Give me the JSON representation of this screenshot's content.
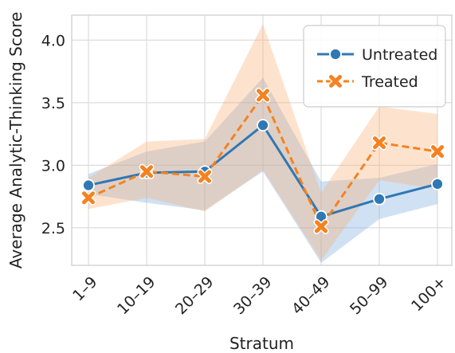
{
  "chart_data": {
    "type": "line",
    "title": "",
    "xlabel": "Stratum",
    "ylabel": "Average Analytic-Thinking Score",
    "categories": [
      "1–9",
      "10–19",
      "20–29",
      "30–39",
      "40–49",
      "50–99",
      "100+"
    ],
    "ylim": [
      2.2,
      4.2
    ],
    "yticks": [
      2.5,
      3.0,
      3.5,
      4.0
    ],
    "ytick_labels": [
      "2.5",
      "3.0",
      "3.5",
      "4.0"
    ],
    "grid": true,
    "legend_position": "top-right",
    "series": [
      {
        "name": "Untreated",
        "color": "#2f78b4",
        "line_style": "solid",
        "marker": "circle",
        "values": [
          2.84,
          2.94,
          2.95,
          3.32,
          2.59,
          2.73,
          2.85
        ],
        "ci_lower": [
          2.77,
          2.7,
          2.64,
          2.95,
          2.22,
          2.57,
          2.69
        ],
        "ci_upper": [
          2.93,
          3.11,
          3.19,
          3.7,
          2.87,
          2.9,
          3.01
        ]
      },
      {
        "name": "Treated",
        "color": "#f58220",
        "line_style": "dashed",
        "marker": "x",
        "values": [
          2.74,
          2.95,
          2.91,
          3.56,
          2.51,
          3.18,
          3.11
        ],
        "ci_lower": [
          2.65,
          2.74,
          2.63,
          2.96,
          2.24,
          2.88,
          2.81
        ],
        "ci_upper": [
          2.9,
          3.19,
          3.21,
          4.13,
          2.78,
          3.47,
          3.41
        ]
      }
    ]
  }
}
